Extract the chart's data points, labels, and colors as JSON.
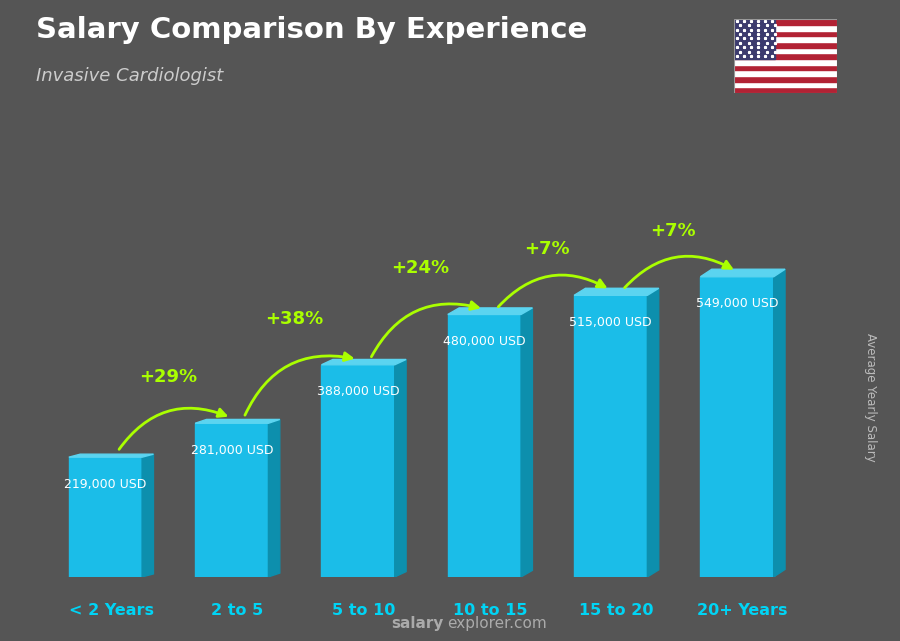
{
  "title": "Salary Comparison By Experience",
  "subtitle": "Invasive Cardiologist",
  "watermark": "Average Yearly Salary",
  "xlabel_labels": [
    "< 2 Years",
    "2 to 5",
    "5 to 10",
    "10 to 15",
    "15 to 20",
    "20+ Years"
  ],
  "values": [
    219000,
    281000,
    388000,
    480000,
    515000,
    549000
  ],
  "value_labels": [
    "219,000 USD",
    "281,000 USD",
    "388,000 USD",
    "480,000 USD",
    "515,000 USD",
    "549,000 USD"
  ],
  "pct_labels": [
    "+29%",
    "+38%",
    "+24%",
    "+7%",
    "+7%"
  ],
  "face_color": "#1bbde8",
  "side_color": "#0d8fad",
  "top_color": "#5bd4f0",
  "bg_color": "#555555",
  "title_color": "#ffffff",
  "subtitle_color": "#cccccc",
  "value_color": "#ffffff",
  "pct_color": "#aaff00",
  "xlabel_color": "#00d4f5",
  "footer_text": "salaryexplorer.com",
  "footer_bold": "salary",
  "ylim_max": 680000,
  "bar_width": 0.58,
  "dx3d": 0.09,
  "dy3d_factor": 0.025
}
